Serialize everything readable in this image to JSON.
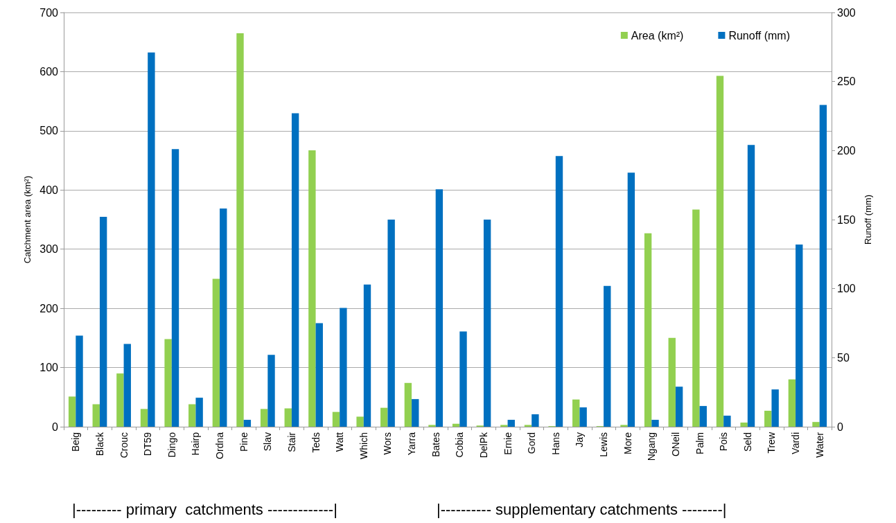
{
  "chart_data": {
    "type": "bar",
    "ylabel": "Catchment area (km²)",
    "y2label": "Runoff (mm)",
    "categories": [
      "Beig",
      "Black",
      "Crouc",
      "DT59",
      "Dingo",
      "Hairp",
      "Ordna",
      "Pine",
      "Slav",
      "Stair",
      "Teds",
      "Watt",
      "Which",
      "Wors",
      "Yarra",
      "Bates",
      "Cobia",
      "DelPk",
      "Ernie",
      "Gord",
      "Hans",
      "Jay",
      "Lewis",
      "More",
      "Ngang",
      "ONeil",
      "Palm",
      "Pois",
      "Seld",
      "Trew",
      "Vardi",
      "Water"
    ],
    "series": [
      {
        "name": "Area (km²)",
        "color": "#92d050",
        "values": [
          51,
          38,
          90,
          30,
          148,
          38,
          250,
          665,
          30,
          31,
          467,
          25,
          17,
          32,
          74,
          3,
          5,
          2,
          3,
          3,
          1,
          46,
          1,
          3,
          327,
          150,
          367,
          593,
          7,
          27,
          80,
          8
        ]
      },
      {
        "name": "Runoff (mm)",
        "color": "#0070c0",
        "axis": "y2",
        "values": [
          66,
          152,
          60,
          271,
          201,
          21,
          158,
          5,
          52,
          227,
          75,
          86,
          103,
          150,
          20,
          172,
          69,
          150,
          5,
          9,
          196,
          14,
          102,
          184,
          5,
          29,
          15,
          8,
          204,
          27,
          132,
          233
        ]
      }
    ],
    "ylim": [
      0,
      700
    ],
    "yticks": [
      0,
      100,
      200,
      300,
      400,
      500,
      600,
      700
    ],
    "y2lim": [
      0,
      300
    ],
    "y2ticks": [
      0,
      50,
      100,
      150,
      200,
      250,
      300
    ],
    "grid": "y",
    "legend": "top right",
    "annotations": [
      "|--------- primary  catchments -------------|",
      "|---------- supplementary catchments --------|"
    ]
  }
}
